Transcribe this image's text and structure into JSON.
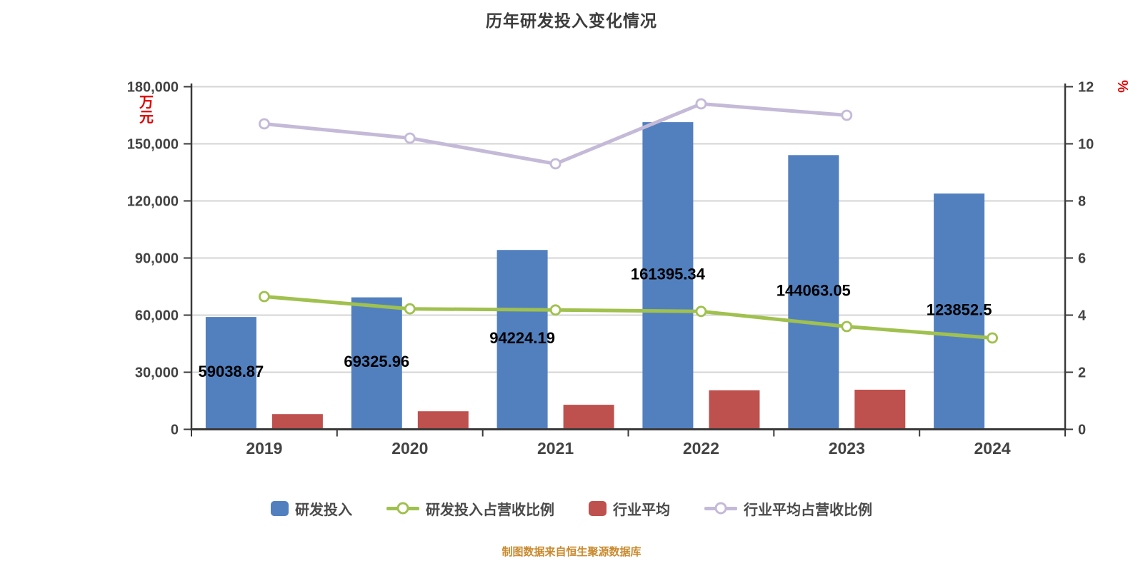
{
  "chart_data": {
    "type": "combo-bar-line",
    "title": "历年研发投入变化情况",
    "source_note": "制图数据来自恒生聚源数据库",
    "categories": [
      "2019",
      "2020",
      "2021",
      "2022",
      "2023",
      "2024"
    ],
    "left_axis": {
      "unit": "万元",
      "unit_color": "#e00000",
      "min": 0,
      "max": 180000,
      "step": 30000,
      "tick_labels": [
        "0",
        "30,000",
        "60,000",
        "90,000",
        "120,000",
        "150,000",
        "180,000"
      ]
    },
    "right_axis": {
      "unit": "%",
      "unit_color": "#e00000",
      "min": 0,
      "max": 12,
      "step": 2,
      "tick_labels": [
        "0",
        "2",
        "4",
        "6",
        "8",
        "10",
        "12"
      ]
    },
    "series": [
      {
        "name": "研发投入",
        "type": "bar",
        "axis": "left",
        "color": "#5280bf",
        "values": [
          59038.87,
          69325.96,
          94224.19,
          161395.34,
          144063.05,
          123852.5
        ],
        "value_labels": [
          "59038.87",
          "69325.96",
          "94224.19",
          "161395.34",
          "144063.05",
          "123852.5"
        ],
        "show_value_labels": true
      },
      {
        "name": "研发投入占营收比例",
        "type": "line",
        "axis": "right",
        "color": "#a0c14e",
        "values": [
          4.65,
          4.22,
          4.18,
          4.13,
          3.6,
          3.2
        ],
        "show_value_labels": false
      },
      {
        "name": "行业平均",
        "type": "bar",
        "axis": "left",
        "color": "#be504d",
        "values": [
          8000,
          9500,
          12900,
          20500,
          20800,
          null
        ],
        "show_value_labels": false
      },
      {
        "name": "行业平均占营收比例",
        "type": "line",
        "axis": "right",
        "color": "#c4bad8",
        "values": [
          10.7,
          10.2,
          9.3,
          11.4,
          11.0,
          null
        ],
        "show_value_labels": false
      }
    ],
    "legend_position": "bottom",
    "grid": true,
    "styles": {
      "grid_color": "#d4d4d4",
      "axis_color": "#3a3a3a",
      "tick_label_color": "#434343",
      "value_label_color": "#000000",
      "background": "#ffffff"
    }
  }
}
